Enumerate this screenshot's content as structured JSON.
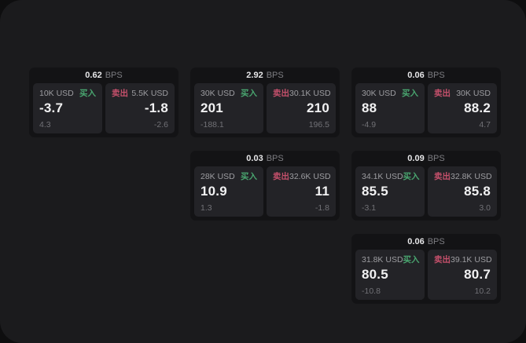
{
  "labels": {
    "buy": "买入",
    "sell": "卖出",
    "bps_suffix": "BPS"
  },
  "colors": {
    "buy_green": "#49a56f",
    "sell_red": "#c4506b"
  },
  "cards": [
    {
      "bps": "0.62",
      "col": 1,
      "row": 1,
      "buy": {
        "amount": "10K USD",
        "value": "-3.7",
        "sub": "4.3"
      },
      "sell": {
        "amount": "5.5K USD",
        "value": "-1.8",
        "sub": "-2.6"
      }
    },
    {
      "bps": "2.92",
      "col": 2,
      "row": 1,
      "buy": {
        "amount": "30K USD",
        "value": "201",
        "sub": "-188.1"
      },
      "sell": {
        "amount": "30.1K USD",
        "value": "210",
        "sub": "196.5"
      }
    },
    {
      "bps": "0.06",
      "col": 3,
      "row": 1,
      "buy": {
        "amount": "30K USD",
        "value": "88",
        "sub": "-4.9"
      },
      "sell": {
        "amount": "30K USD",
        "value": "88.2",
        "sub": "4.7"
      }
    },
    {
      "bps": "0.03",
      "col": 2,
      "row": 2,
      "buy": {
        "amount": "28K USD",
        "value": "10.9",
        "sub": "1.3"
      },
      "sell": {
        "amount": "32.6K USD",
        "value": "11",
        "sub": "-1.8"
      }
    },
    {
      "bps": "0.09",
      "col": 3,
      "row": 2,
      "buy": {
        "amount": "34.1K USD",
        "value": "85.5",
        "sub": "-3.1"
      },
      "sell": {
        "amount": "32.8K USD",
        "value": "85.8",
        "sub": "3.0"
      }
    },
    {
      "bps": "0.06",
      "col": 3,
      "row": 3,
      "buy": {
        "amount": "31.8K USD",
        "value": "80.5",
        "sub": "-10.8"
      },
      "sell": {
        "amount": "39.1K USD",
        "value": "80.7",
        "sub": "10.2"
      }
    }
  ]
}
